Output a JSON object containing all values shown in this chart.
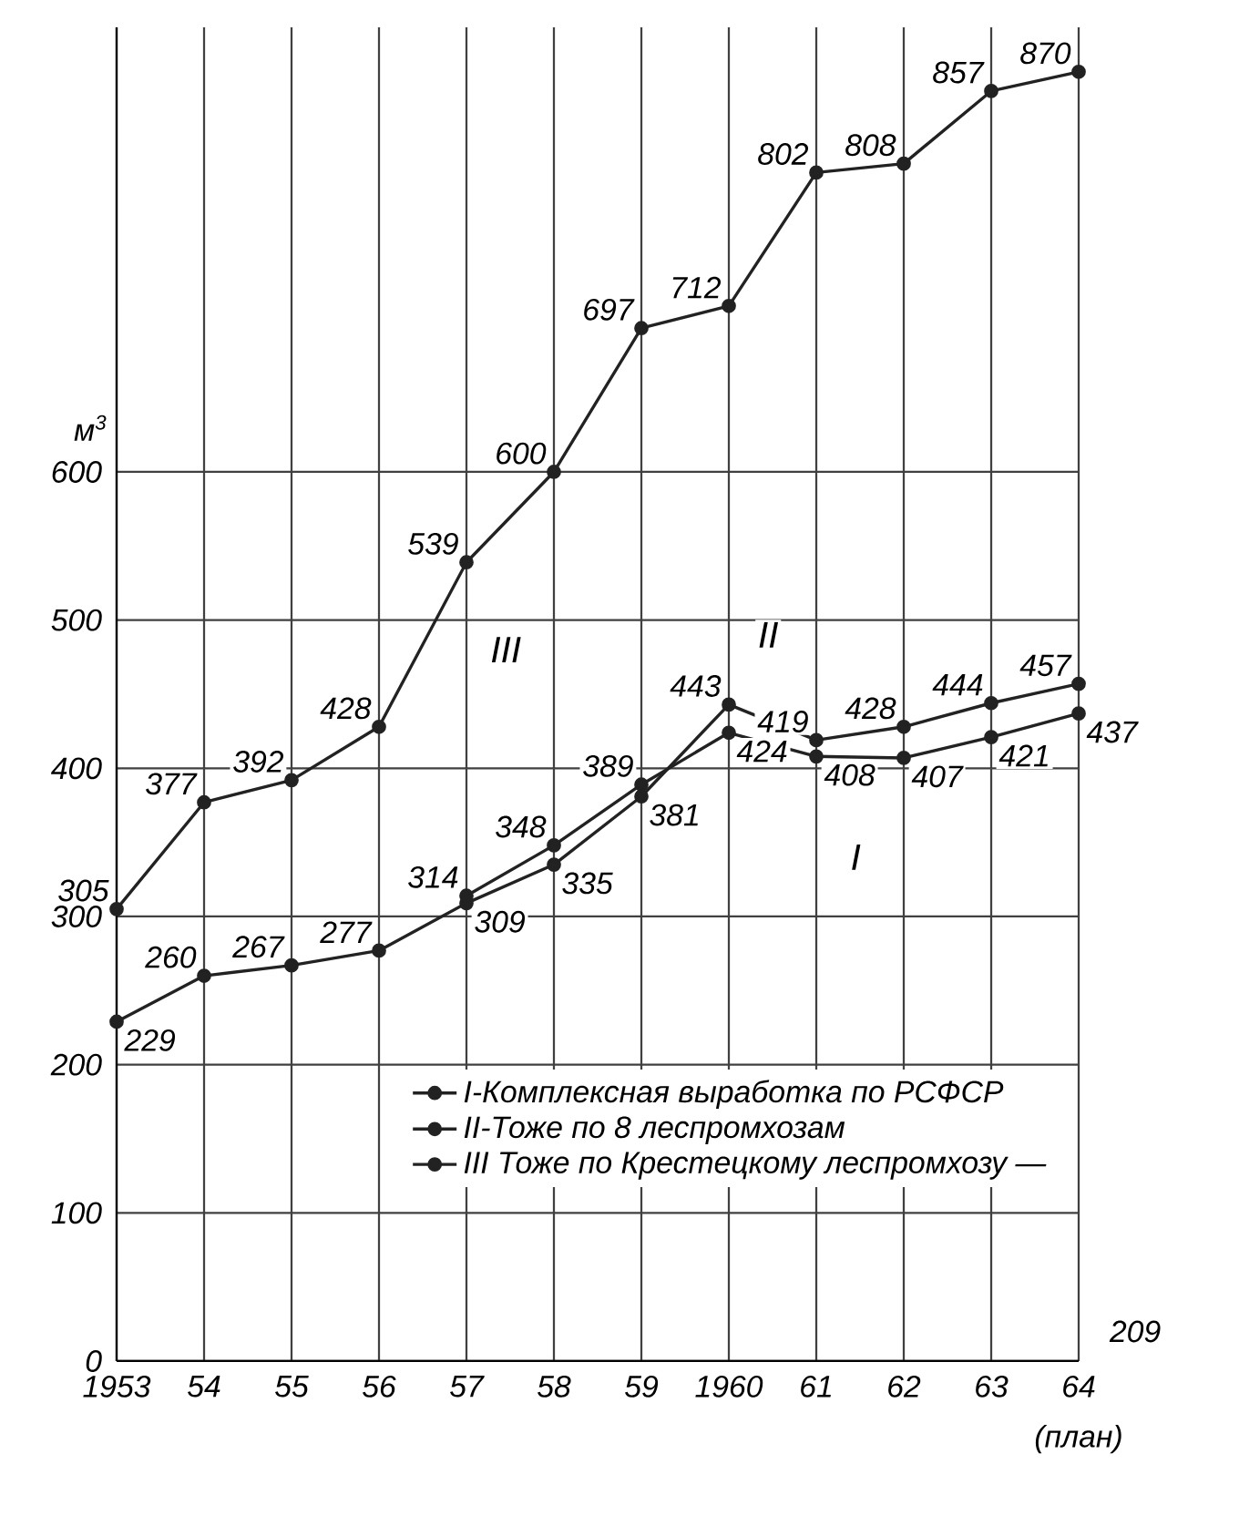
{
  "chart_data": {
    "type": "line",
    "ylabel": "м$^{3}$",
    "categories": [
      "1953",
      "54",
      "55",
      "56",
      "57",
      "58",
      "59",
      "1960",
      "61",
      "62",
      "63",
      "64"
    ],
    "series": [
      {
        "name": "I-Комплексная выработка по РСФСР",
        "color": "#222222",
        "values": [
          null,
          null,
          null,
          null,
          314,
          348,
          389,
          424,
          408,
          407,
          421,
          437
        ],
        "value_labels": [
          null,
          null,
          null,
          null,
          "314",
          "348",
          "389",
          "424",
          "408",
          "407",
          "421",
          "437"
        ]
      },
      {
        "name": "II-Тоже по 8 леспромхозам",
        "color": "#222222",
        "values": [
          229,
          260,
          267,
          277,
          309,
          335,
          381,
          443,
          419,
          428,
          444,
          457
        ],
        "value_labels": [
          "229",
          "260",
          "267",
          "277",
          "309",
          "335",
          "381",
          "443",
          "419",
          "428",
          "444",
          "457"
        ]
      },
      {
        "name": "III Тоже по Крестецкому леспромхозу —",
        "color": "#222222",
        "values": [
          305,
          377,
          392,
          428,
          539,
          600,
          697,
          712,
          802,
          808,
          857,
          870
        ],
        "value_labels": [
          "305",
          "377",
          "392",
          "428",
          "539",
          "600",
          "697",
          "712",
          "802",
          "808",
          "857",
          "870"
        ]
      }
    ],
    "ylim": [
      0,
      900
    ],
    "yticks": [
      0,
      100,
      200,
      300,
      400,
      500,
      600
    ],
    "grid": true,
    "legend": "bottom right",
    "marker": "circle",
    "line_style": "solid",
    "annotations": [
      "III",
      "II",
      "I",
      "(план)",
      "209"
    ]
  }
}
